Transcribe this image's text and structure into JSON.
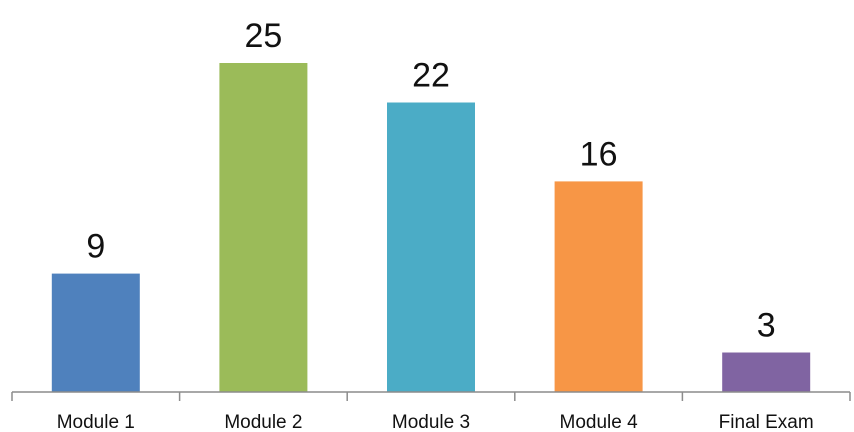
{
  "chart_data": {
    "type": "bar",
    "categories": [
      "Module 1",
      "Module 2",
      "Module 3",
      "Module 4",
      "Final Exam"
    ],
    "values": [
      9,
      25,
      22,
      16,
      3
    ],
    "data_labels": [
      "9",
      "25",
      "22",
      "16",
      "3"
    ],
    "colors": [
      "#4f81bd",
      "#9bbb59",
      "#4bacc6",
      "#f79646",
      "#8064a2"
    ],
    "title": "",
    "xlabel": "",
    "ylabel": "",
    "ylim": [
      0,
      25
    ],
    "grid": false,
    "legend": "none"
  }
}
